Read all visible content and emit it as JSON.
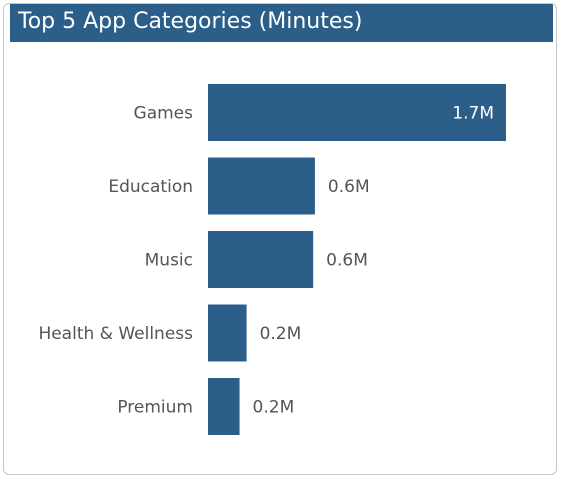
{
  "title": "Top 5 App Categories (Minutes)",
  "colors": {
    "bar": "#2b5f8a",
    "title_bg": "#2b5f8a",
    "title_text": "#ffffff",
    "label_text": "#555555",
    "value_inside": "#ffffff"
  },
  "chart_data": {
    "type": "bar",
    "orientation": "horizontal",
    "title": "Top 5 App Categories (Minutes)",
    "categories": [
      "Games",
      "Education",
      "Music",
      "Health & Wellness",
      "Premium"
    ],
    "values": [
      1.7,
      0.61,
      0.6,
      0.22,
      0.18
    ],
    "data_labels": [
      "1.7M",
      "0.6M",
      "0.6M",
      "0.2M",
      "0.2M"
    ],
    "xlim": [
      0,
      1.7
    ],
    "grid": false,
    "legend": "none"
  }
}
